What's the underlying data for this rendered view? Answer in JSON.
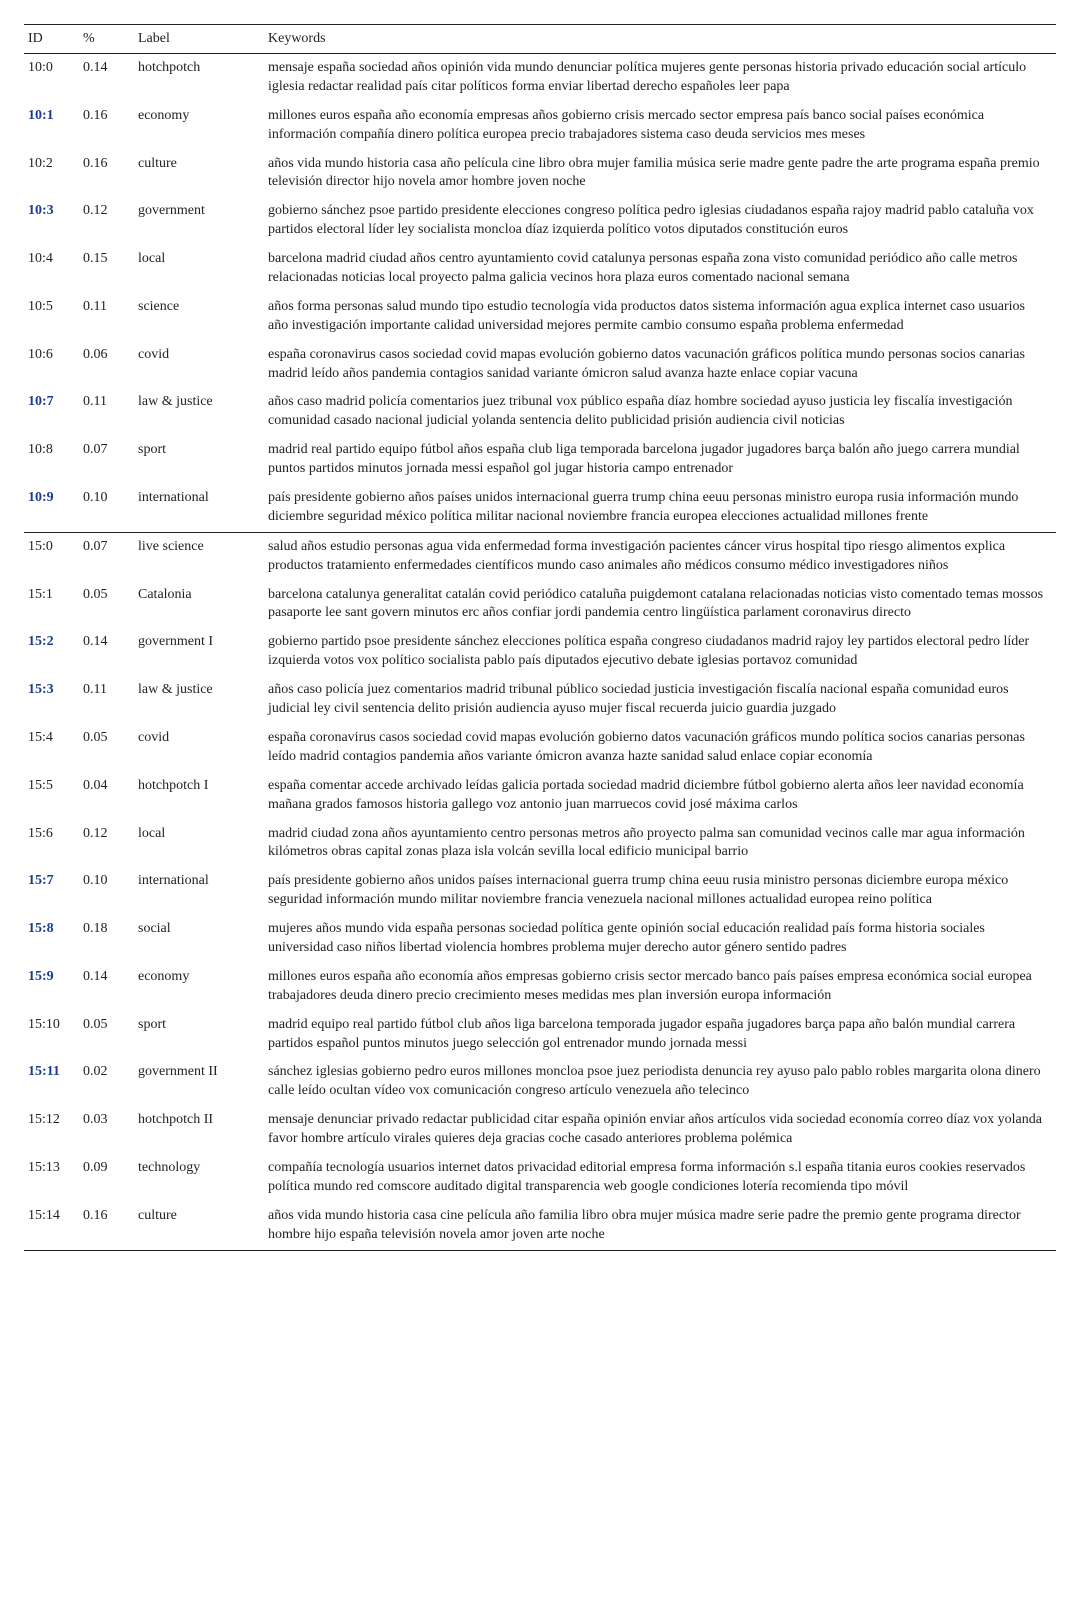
{
  "headers": {
    "id": "ID",
    "pct": "%",
    "label": "Label",
    "keywords": "Keywords"
  },
  "section1": [
    {
      "id": "10:0",
      "pct": "0.14",
      "label": "hotchpotch",
      "bold": false,
      "keywords": "mensaje españa sociedad años opinión vida mundo denunciar política mujeres gente personas historia privado educación social artículo iglesia redactar realidad país citar políticos forma enviar libertad derecho españoles leer papa"
    },
    {
      "id": "10:1",
      "pct": "0.16",
      "label": "economy",
      "bold": true,
      "keywords": "millones euros españa año economía empresas años gobierno crisis mercado sector empresa país banco social países económica información compañía dinero política europea precio trabajadores sistema caso deuda servicios mes meses"
    },
    {
      "id": "10:2",
      "pct": "0.16",
      "label": "culture",
      "bold": false,
      "keywords": "años vida mundo historia casa año película cine libro obra mujer familia música serie madre gente padre the arte programa españa premio televisión director hijo novela amor hombre joven noche"
    },
    {
      "id": "10:3",
      "pct": "0.12",
      "label": "government",
      "bold": true,
      "keywords": "gobierno sánchez psoe partido presidente elecciones congreso política pedro iglesias ciudadanos españa rajoy madrid pablo cataluña vox partidos electoral líder ley socialista moncloa díaz izquierda político votos diputados constitución euros"
    },
    {
      "id": "10:4",
      "pct": "0.15",
      "label": "local",
      "bold": false,
      "keywords": "barcelona madrid ciudad años centro ayuntamiento covid catalunya personas españa zona visto comunidad periódico año calle metros relacionadas noticias local proyecto palma galicia vecinos hora plaza euros comentado nacional semana"
    },
    {
      "id": "10:5",
      "pct": "0.11",
      "label": "science",
      "bold": false,
      "keywords": "años forma personas salud mundo tipo estudio tecnología vida productos datos sistema información agua explica internet caso usuarios año investigación importante calidad universidad mejores permite cambio consumo españa problema enfermedad"
    },
    {
      "id": "10:6",
      "pct": "0.06",
      "label": "covid",
      "bold": false,
      "keywords": "españa coronavirus casos sociedad covid mapas evolución gobierno datos vacunación gráficos política mundo personas socios canarias madrid leído años pandemia contagios sanidad variante ómicron salud avanza hazte enlace copiar vacuna"
    },
    {
      "id": "10:7",
      "pct": "0.11",
      "label": "law & justice",
      "bold": true,
      "keywords": "años caso madrid policía comentarios juez tribunal vox público españa díaz hombre sociedad ayuso justicia ley fiscalía investigación comunidad casado nacional judicial yolanda sentencia delito publicidad prisión audiencia civil noticias"
    },
    {
      "id": "10:8",
      "pct": "0.07",
      "label": "sport",
      "bold": false,
      "keywords": "madrid real partido equipo fútbol años españa club liga temporada barcelona jugador jugadores barça balón año juego carrera mundial puntos partidos minutos jornada messi español gol jugar historia campo entrenador"
    },
    {
      "id": "10:9",
      "pct": "0.10",
      "label": "international",
      "bold": true,
      "keywords": "país presidente gobierno años países unidos internacional guerra trump china eeuu personas ministro europa rusia información mundo diciembre seguridad méxico política militar nacional noviembre francia europea elecciones actualidad millones frente"
    }
  ],
  "section2": [
    {
      "id": "15:0",
      "pct": "0.07",
      "label": "live science",
      "bold": false,
      "keywords": "salud años estudio personas agua vida enfermedad forma investigación pacientes cáncer virus hospital tipo riesgo alimentos explica productos tratamiento enfermedades científicos mundo caso animales año médicos consumo médico investigadores niños"
    },
    {
      "id": "15:1",
      "pct": "0.05",
      "label": "Catalonia",
      "bold": false,
      "keywords": "barcelona catalunya generalitat catalán covid periódico cataluña puigdemont catalana relacionadas noticias visto comentado temas mossos pasaporte lee sant govern minutos erc años confiar jordi pandemia centro lingüística parlament coronavirus directo"
    },
    {
      "id": "15:2",
      "pct": "0.14",
      "label": "government I",
      "bold": true,
      "keywords": "gobierno partido psoe presidente sánchez elecciones política españa congreso ciudadanos madrid rajoy ley partidos electoral pedro líder izquierda votos vox político socialista pablo país diputados ejecutivo debate iglesias portavoz comunidad"
    },
    {
      "id": "15:3",
      "pct": "0.11",
      "label": "law & justice",
      "bold": true,
      "keywords": "años caso policía juez comentarios madrid tribunal público sociedad justicia investigación fiscalía nacional españa comunidad euros judicial ley civil sentencia delito prisión audiencia ayuso mujer fiscal recuerda juicio guardia juzgado"
    },
    {
      "id": "15:4",
      "pct": "0.05",
      "label": "covid",
      "bold": false,
      "keywords": "españa coronavirus casos sociedad covid mapas evolución gobierno datos vacunación gráficos mundo política socios canarias personas leído madrid contagios pandemia años variante ómicron avanza hazte sanidad salud enlace copiar economía"
    },
    {
      "id": "15:5",
      "pct": "0.04",
      "label": "hotchpotch I",
      "bold": false,
      "keywords": "españa comentar accede archivado leídas galicia portada sociedad madrid diciembre fútbol gobierno alerta años leer navidad economía mañana grados famosos historia gallego voz antonio juan marruecos covid josé máxima carlos"
    },
    {
      "id": "15:6",
      "pct": "0.12",
      "label": "local",
      "bold": false,
      "keywords": "madrid ciudad zona años ayuntamiento centro personas metros año proyecto palma san comunidad vecinos calle mar agua información kilómetros obras capital zonas plaza isla volcán sevilla local edificio municipal barrio"
    },
    {
      "id": "15:7",
      "pct": "0.10",
      "label": "international",
      "bold": true,
      "keywords": "país presidente gobierno años unidos países internacional guerra trump china eeuu rusia ministro personas diciembre europa méxico seguridad información mundo militar noviembre francia venezuela nacional millones actualidad europea reino política"
    },
    {
      "id": "15:8",
      "pct": "0.18",
      "label": "social",
      "bold": true,
      "keywords": "mujeres años mundo vida españa personas sociedad política gente opinión social educación realidad país forma historia sociales universidad caso niños libertad violencia hombres problema mujer derecho autor género sentido padres"
    },
    {
      "id": "15:9",
      "pct": "0.14",
      "label": "economy",
      "bold": true,
      "keywords": "millones euros españa año economía años empresas gobierno crisis sector mercado banco país países empresa económica social europea trabajadores deuda dinero precio crecimiento meses medidas mes plan inversión europa información"
    },
    {
      "id": "15:10",
      "pct": "0.05",
      "label": "sport",
      "bold": false,
      "keywords": "madrid equipo real partido fútbol club años liga barcelona temporada jugador españa jugadores barça papa año balón mundial carrera partidos español puntos minutos juego selección gol entrenador mundo jornada messi"
    },
    {
      "id": "15:11",
      "pct": "0.02",
      "label": "government II",
      "bold": true,
      "keywords": "sánchez iglesias gobierno pedro euros millones moncloa psoe juez periodista denuncia rey ayuso palo pablo robles margarita olona dinero calle leído ocultan vídeo vox comunicación congreso artículo venezuela año telecinco"
    },
    {
      "id": "15:12",
      "pct": "0.03",
      "label": "hotchpotch II",
      "bold": false,
      "keywords": "mensaje denunciar privado redactar publicidad citar españa opinión enviar años artículos vida sociedad economía correo díaz vox yolanda favor hombre artículo virales quieres deja gracias coche casado anteriores problema polémica"
    },
    {
      "id": "15:13",
      "pct": "0.09",
      "label": "technology",
      "bold": false,
      "keywords": "compañía tecnología usuarios internet datos privacidad editorial empresa forma información s.l españa titania euros cookies reservados política mundo red comscore auditado digital transparencia web google condiciones lotería recomienda tipo móvil"
    },
    {
      "id": "15:14",
      "pct": "0.16",
      "label": "culture",
      "bold": false,
      "keywords": "años vida mundo historia casa cine película año familia libro obra mujer música madre serie padre the premio gente programa director hombre hijo españa televisión novela amor joven arte noche"
    }
  ]
}
